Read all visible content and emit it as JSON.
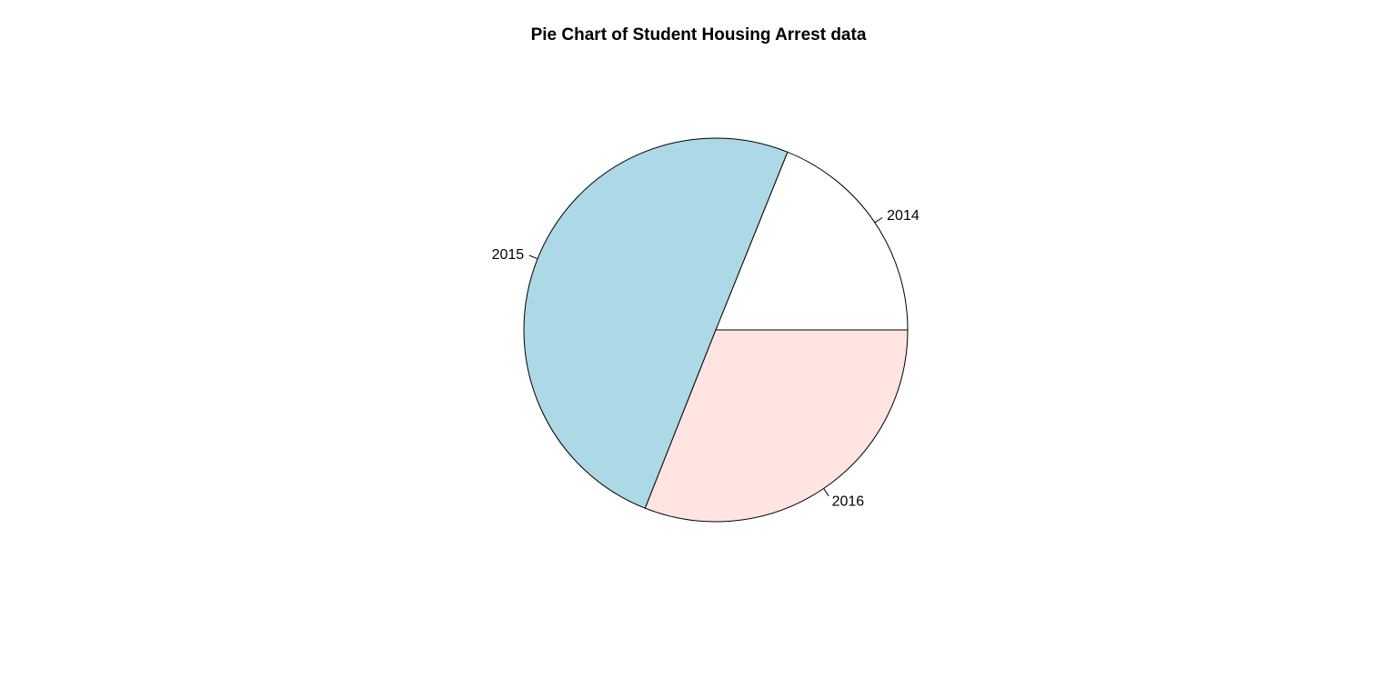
{
  "chart_data": {
    "type": "pie",
    "title": "Pie Chart of Student Housing Arrest data",
    "categories": [
      "2014",
      "2015",
      "2016"
    ],
    "values": [
      18.9,
      50.1,
      31.0
    ],
    "colors": [
      "#ffffff",
      "#add8e6",
      "#ffe4e1"
    ],
    "direction": "counterclockwise",
    "start": "3 o'clock",
    "legend": "none"
  }
}
